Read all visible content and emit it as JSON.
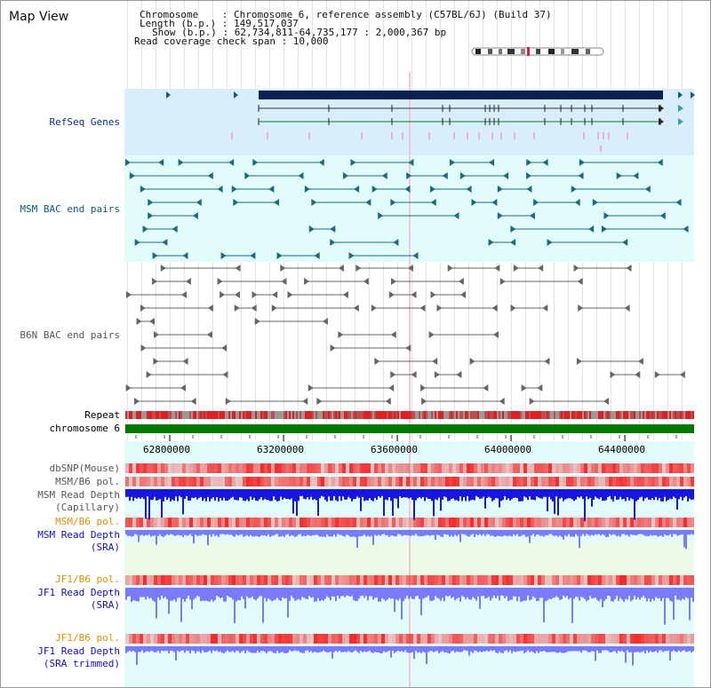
{
  "app": {
    "title": "Map View"
  },
  "info": {
    "chromosome": "Chromosome    : Chromosome 6, reference assembly (C57BL/6J) (Build 37)",
    "length": "Length (b.p.) : 149,517,037",
    "show": "Show (b.p.) : 62,734,811-64,735,177 : 2,000,367 bp",
    "coverage": "Read coverage check span : 10,000"
  },
  "tracks": {
    "refseq": "RefSeq Genes",
    "msm_bac": "MSM BAC end pairs",
    "b6n_bac": "B6N BAC end pairs",
    "repeat": "Repeat",
    "chrom": "chromosome 6",
    "dbsnp": "dbSNP(Mouse)",
    "msm_b6_pol_1": "MSM/B6 pol.",
    "msm_depth_cap_1": "MSM Read Depth",
    "msm_depth_cap_2": "(Capillary)",
    "msm_b6_pol_2": "MSM/B6 pol.",
    "msm_depth_sra_1": "MSM Read Depth",
    "msm_depth_sra_2": "(SRA)",
    "jf1_b6_pol_1": "JF1/B6 pol.",
    "jf1_depth_sra_1": "JF1 Read Depth",
    "jf1_depth_sra_2": "(SRA)",
    "jf1_b6_pol_2": "JF1/B6 pol.",
    "jf1_depth_trim_1": "JF1 Read Depth",
    "jf1_depth_trim_2": "(SRA trimmed)"
  },
  "axis": {
    "ticks": [
      "62800000",
      "63200000",
      "63600000",
      "64000000",
      "64400000"
    ]
  },
  "colors": {
    "refseq_bg": "#d8eefc",
    "msm_bg": "#e2fbfb",
    "b6n_bg": "#ffffff",
    "chrom": "#007700",
    "depth_blue": "#1616e0",
    "sra_blue": "#7a7aff",
    "pol_red": "#ff6666",
    "gene": "#0a2050",
    "msm_pair": "#1a6a80",
    "b6n_pair": "#666666"
  }
}
